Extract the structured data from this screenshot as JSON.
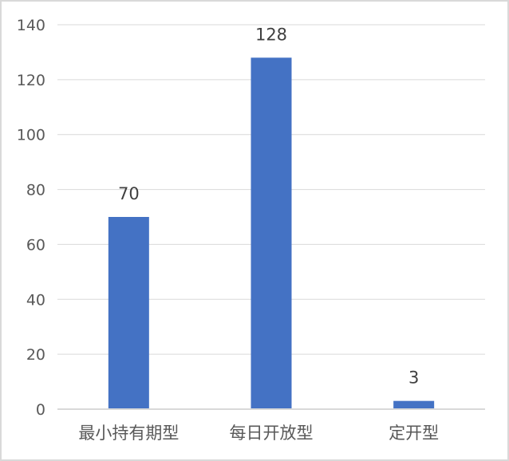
{
  "chart_data": {
    "type": "bar",
    "title": "",
    "xlabel": "",
    "ylabel": "",
    "categories": [
      "最小持有期型",
      "每日开放型",
      "定开型"
    ],
    "values": [
      70,
      128,
      3
    ],
    "data_labels": [
      "70",
      "128",
      "3"
    ],
    "ylim": [
      0,
      140
    ],
    "yticks": [
      0,
      20,
      40,
      60,
      80,
      100,
      120,
      140
    ],
    "ytick_labels": [
      "0",
      "20",
      "40",
      "60",
      "80",
      "100",
      "120",
      "140"
    ],
    "grid": true,
    "legend": "none",
    "colors": {
      "bar": "#4472C4",
      "grid": "#d9d9d9",
      "axis": "#d9d9d9"
    }
  }
}
